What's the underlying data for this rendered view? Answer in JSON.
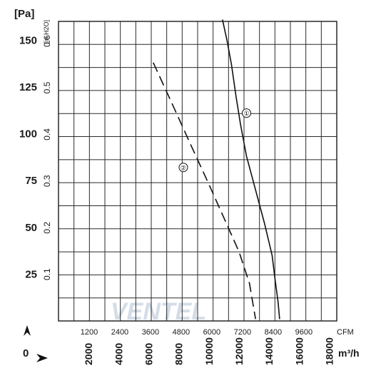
{
  "chart_data": {
    "type": "line",
    "units": {
      "pressure_pa": "[Pa]",
      "pressure_inh2o": "[in.H2O]",
      "flow_cfm": "CFM",
      "flow_m3h": "m³/h"
    },
    "pa_ticks": [
      "150",
      "125",
      "100",
      "75",
      "50",
      "25"
    ],
    "inh2o_ticks": [
      "0.6",
      "0.5",
      "0.4",
      "0.3",
      "0.2",
      "0.1"
    ],
    "cfm_ticks": [
      "1200",
      "2400",
      "3600",
      "4800",
      "6000",
      "7200",
      "8400",
      "9600"
    ],
    "m3h_ticks": [
      "2000",
      "4000",
      "6000",
      "8000",
      "10000",
      "12000",
      "14000",
      "16000",
      "18000"
    ],
    "origin_label": "0",
    "ylim_pa": [
      0,
      160
    ],
    "xlim_m3h": [
      0,
      18500
    ],
    "grid": true,
    "series": [
      {
        "name": "①",
        "style": "solid",
        "x_m3h": [
          10900,
          11200,
          11500,
          11800,
          12100,
          12500,
          13100,
          13700,
          14200,
          14400,
          14600,
          14700
        ],
        "y_pa": [
          161,
          150,
          137,
          120,
          105,
          88,
          70,
          52,
          35,
          22,
          10,
          1
        ]
      },
      {
        "name": "②",
        "style": "dashed",
        "x_m3h": [
          6300,
          7500,
          8800,
          10000,
          11000,
          12000,
          12700,
          13100
        ],
        "y_pa": [
          138,
          117,
          94,
          73,
          55,
          37,
          20,
          1
        ]
      }
    ],
    "series_label_positions_pa": [
      [
        12500,
        111
      ],
      [
        8300,
        82
      ]
    ]
  },
  "watermark": "VENTEL"
}
